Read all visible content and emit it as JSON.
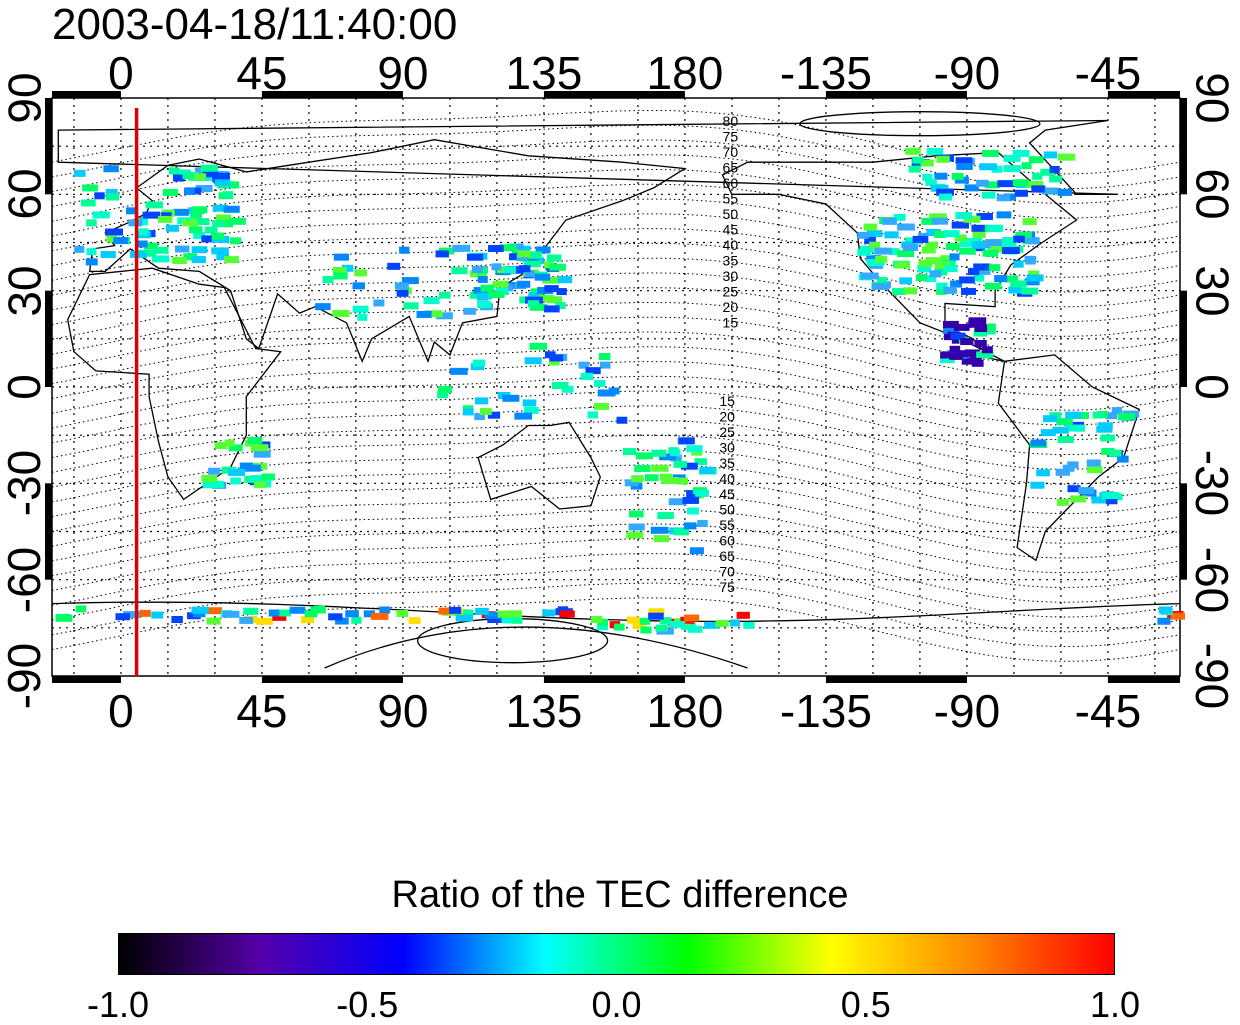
{
  "title": "2003-04-18/11:40:00",
  "colorbar": {
    "title": "Ratio of the TEC difference",
    "ticks": [
      "-1.0",
      "-0.5",
      "0.0",
      "0.5",
      "1.0"
    ],
    "colors": [
      "#000000",
      "#5500aa",
      "#0000ff",
      "#00ffff",
      "#00ff00",
      "#ffff00",
      "#ff8800",
      "#ff0000"
    ]
  },
  "map": {
    "longitude_labels": [
      "0",
      "45",
      "90",
      "135",
      "180",
      "-135",
      "-90",
      "-45"
    ],
    "latitude_labels_left": [
      "90",
      "60",
      "30",
      "0",
      "-30",
      "-60",
      "-90"
    ],
    "latitude_labels_right": [
      "90",
      "60",
      "30",
      "0",
      "-30",
      "-60",
      "-90"
    ],
    "contour_labels_north": [
      "80",
      "75",
      "70",
      "65",
      "60",
      "55",
      "50",
      "45",
      "40",
      "35",
      "30",
      "25",
      "20",
      "15"
    ],
    "contour_labels_south": [
      "15",
      "20",
      "25",
      "30",
      "35",
      "40",
      "45",
      "50",
      "55",
      "60",
      "65",
      "70",
      "75"
    ],
    "marker_line": {
      "longitude": 5,
      "color": "#dd0000"
    }
  }
}
